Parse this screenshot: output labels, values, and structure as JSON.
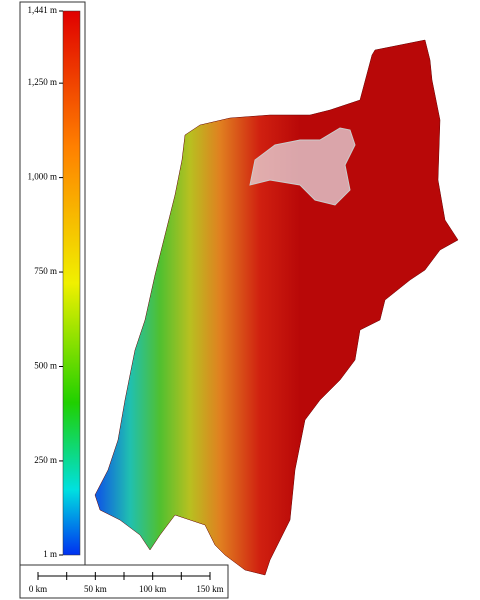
{
  "legend": {
    "ticks": [
      {
        "value": 1441,
        "label": "1,441 m"
      },
      {
        "value": 1250,
        "label": "1,250 m"
      },
      {
        "value": 1000,
        "label": "1,000 m"
      },
      {
        "value": 750,
        "label": "750 m"
      },
      {
        "value": 500,
        "label": "500 m"
      },
      {
        "value": 250,
        "label": "250 m"
      },
      {
        "value": 1,
        "label": "1 m"
      }
    ]
  },
  "scale_bar": {
    "ticks": [
      {
        "value": 0,
        "label": "0 km"
      },
      {
        "value": 50,
        "label": "50 km"
      },
      {
        "value": 100,
        "label": "100 km"
      },
      {
        "value": 150,
        "label": "150 km"
      }
    ]
  }
}
